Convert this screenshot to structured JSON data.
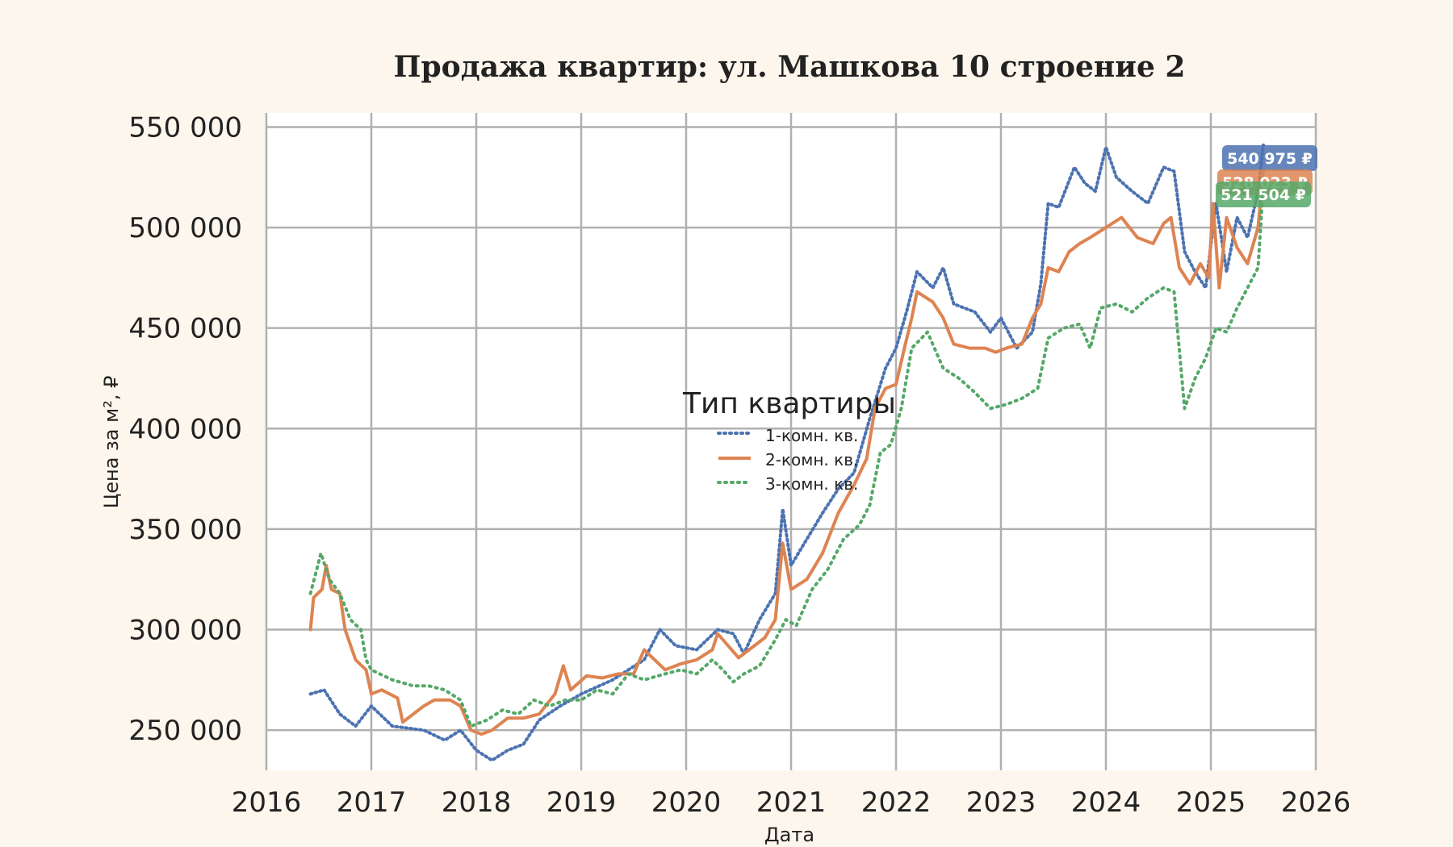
{
  "colors": {
    "background": "#fdf6ec",
    "plot_background": "#ffffff",
    "grid": "#b0b0b0",
    "series_1": "#4c72b0",
    "series_2": "#dd8452",
    "series_3": "#55a868"
  },
  "chart_data": {
    "type": "line",
    "title": "Продажа квартир: ул. Машкова 10 строение 2",
    "xlabel": "Дата",
    "ylabel": "Цена за м², ₽",
    "xlim": [
      2016,
      2026
    ],
    "ylim": [
      230000,
      557000
    ],
    "grid": true,
    "x_ticks": [
      "2016",
      "2017",
      "2018",
      "2019",
      "2020",
      "2021",
      "2022",
      "2023",
      "2024",
      "2025",
      "2026"
    ],
    "y_ticks": [
      "250 000",
      "300 000",
      "350 000",
      "400 000",
      "450 000",
      "500 000",
      "550 000"
    ],
    "y_tick_values": [
      250000,
      300000,
      350000,
      400000,
      450000,
      500000,
      550000
    ],
    "legend": {
      "title": "Тип квартиры",
      "placement": "center",
      "entries": [
        "1-комн. кв.",
        "2-комн. кв.",
        "3-комн. кв."
      ]
    },
    "series": [
      {
        "name": "1-комн. кв.",
        "style": "dotted-triangle",
        "last_value_label": "540 975 ₽",
        "points": [
          [
            2016.42,
            268000
          ],
          [
            2016.55,
            270000
          ],
          [
            2016.7,
            258000
          ],
          [
            2016.85,
            252000
          ],
          [
            2017.0,
            262000
          ],
          [
            2017.2,
            252000
          ],
          [
            2017.5,
            250000
          ],
          [
            2017.7,
            245000
          ],
          [
            2017.85,
            250000
          ],
          [
            2018.0,
            240000
          ],
          [
            2018.15,
            235000
          ],
          [
            2018.3,
            240000
          ],
          [
            2018.45,
            243000
          ],
          [
            2018.6,
            255000
          ],
          [
            2018.8,
            262000
          ],
          [
            2019.0,
            268000
          ],
          [
            2019.3,
            275000
          ],
          [
            2019.6,
            285000
          ],
          [
            2019.75,
            300000
          ],
          [
            2019.9,
            292000
          ],
          [
            2020.1,
            290000
          ],
          [
            2020.3,
            300000
          ],
          [
            2020.45,
            298000
          ],
          [
            2020.55,
            288000
          ],
          [
            2020.7,
            305000
          ],
          [
            2020.85,
            318000
          ],
          [
            2020.92,
            360000
          ],
          [
            2021.0,
            332000
          ],
          [
            2021.15,
            345000
          ],
          [
            2021.3,
            358000
          ],
          [
            2021.45,
            370000
          ],
          [
            2021.6,
            378000
          ],
          [
            2021.75,
            405000
          ],
          [
            2021.9,
            430000
          ],
          [
            2022.0,
            440000
          ],
          [
            2022.1,
            458000
          ],
          [
            2022.2,
            478000
          ],
          [
            2022.35,
            470000
          ],
          [
            2022.45,
            480000
          ],
          [
            2022.55,
            462000
          ],
          [
            2022.75,
            458000
          ],
          [
            2022.9,
            448000
          ],
          [
            2023.0,
            455000
          ],
          [
            2023.15,
            440000
          ],
          [
            2023.3,
            448000
          ],
          [
            2023.38,
            472000
          ],
          [
            2023.45,
            512000
          ],
          [
            2023.55,
            510000
          ],
          [
            2023.7,
            530000
          ],
          [
            2023.8,
            522000
          ],
          [
            2023.9,
            518000
          ],
          [
            2024.0,
            540000
          ],
          [
            2024.1,
            525000
          ],
          [
            2024.25,
            518000
          ],
          [
            2024.4,
            512000
          ],
          [
            2024.55,
            530000
          ],
          [
            2024.65,
            528000
          ],
          [
            2024.75,
            488000
          ],
          [
            2024.85,
            478000
          ],
          [
            2024.95,
            470000
          ],
          [
            2025.05,
            512000
          ],
          [
            2025.15,
            478000
          ],
          [
            2025.25,
            505000
          ],
          [
            2025.35,
            495000
          ],
          [
            2025.45,
            518000
          ],
          [
            2025.5,
            540975
          ]
        ]
      },
      {
        "name": "2-комн. кв.",
        "style": "solid",
        "last_value_label": "528 023 ₽",
        "points": [
          [
            2016.42,
            300000
          ],
          [
            2016.45,
            316000
          ],
          [
            2016.53,
            320000
          ],
          [
            2016.57,
            332000
          ],
          [
            2016.62,
            320000
          ],
          [
            2016.7,
            318000
          ],
          [
            2016.75,
            300000
          ],
          [
            2016.85,
            285000
          ],
          [
            2016.95,
            280000
          ],
          [
            2017.0,
            268000
          ],
          [
            2017.1,
            270000
          ],
          [
            2017.25,
            266000
          ],
          [
            2017.3,
            254000
          ],
          [
            2017.4,
            258000
          ],
          [
            2017.5,
            262000
          ],
          [
            2017.6,
            265000
          ],
          [
            2017.75,
            265000
          ],
          [
            2017.85,
            262000
          ],
          [
            2017.95,
            250000
          ],
          [
            2018.05,
            248000
          ],
          [
            2018.15,
            250000
          ],
          [
            2018.3,
            256000
          ],
          [
            2018.45,
            256000
          ],
          [
            2018.6,
            258000
          ],
          [
            2018.75,
            268000
          ],
          [
            2018.83,
            282000
          ],
          [
            2018.9,
            270000
          ],
          [
            2019.05,
            277000
          ],
          [
            2019.2,
            276000
          ],
          [
            2019.35,
            278000
          ],
          [
            2019.5,
            278000
          ],
          [
            2019.6,
            290000
          ],
          [
            2019.8,
            280000
          ],
          [
            2019.95,
            283000
          ],
          [
            2020.1,
            285000
          ],
          [
            2020.25,
            290000
          ],
          [
            2020.3,
            298000
          ],
          [
            2020.4,
            292000
          ],
          [
            2020.5,
            286000
          ],
          [
            2020.6,
            290000
          ],
          [
            2020.75,
            296000
          ],
          [
            2020.85,
            305000
          ],
          [
            2020.92,
            343000
          ],
          [
            2021.0,
            320000
          ],
          [
            2021.15,
            325000
          ],
          [
            2021.3,
            338000
          ],
          [
            2021.45,
            358000
          ],
          [
            2021.6,
            372000
          ],
          [
            2021.72,
            385000
          ],
          [
            2021.8,
            410000
          ],
          [
            2021.9,
            420000
          ],
          [
            2022.0,
            422000
          ],
          [
            2022.08,
            440000
          ],
          [
            2022.15,
            455000
          ],
          [
            2022.2,
            468000
          ],
          [
            2022.35,
            463000
          ],
          [
            2022.45,
            455000
          ],
          [
            2022.55,
            442000
          ],
          [
            2022.7,
            440000
          ],
          [
            2022.85,
            440000
          ],
          [
            2022.95,
            438000
          ],
          [
            2023.05,
            440000
          ],
          [
            2023.2,
            442000
          ],
          [
            2023.3,
            455000
          ],
          [
            2023.38,
            462000
          ],
          [
            2023.45,
            480000
          ],
          [
            2023.55,
            478000
          ],
          [
            2023.65,
            488000
          ],
          [
            2023.75,
            492000
          ],
          [
            2023.85,
            495000
          ],
          [
            2024.0,
            500000
          ],
          [
            2024.15,
            505000
          ],
          [
            2024.3,
            495000
          ],
          [
            2024.45,
            492000
          ],
          [
            2024.55,
            502000
          ],
          [
            2024.62,
            505000
          ],
          [
            2024.7,
            480000
          ],
          [
            2024.8,
            472000
          ],
          [
            2024.9,
            482000
          ],
          [
            2024.98,
            475000
          ],
          [
            2025.02,
            512000
          ],
          [
            2025.08,
            470000
          ],
          [
            2025.15,
            505000
          ],
          [
            2025.25,
            490000
          ],
          [
            2025.35,
            482000
          ],
          [
            2025.45,
            500000
          ],
          [
            2025.5,
            528023
          ]
        ]
      },
      {
        "name": "3-комн. кв.",
        "style": "dotted",
        "last_value_label": "521 504 ₽",
        "points": [
          [
            2016.42,
            318000
          ],
          [
            2016.52,
            338000
          ],
          [
            2016.6,
            325000
          ],
          [
            2016.7,
            318000
          ],
          [
            2016.8,
            305000
          ],
          [
            2016.9,
            300000
          ],
          [
            2016.95,
            285000
          ],
          [
            2017.0,
            280000
          ],
          [
            2017.2,
            275000
          ],
          [
            2017.4,
            272000
          ],
          [
            2017.55,
            272000
          ],
          [
            2017.7,
            270000
          ],
          [
            2017.85,
            265000
          ],
          [
            2017.95,
            252000
          ],
          [
            2018.1,
            255000
          ],
          [
            2018.25,
            260000
          ],
          [
            2018.4,
            258000
          ],
          [
            2018.55,
            265000
          ],
          [
            2018.7,
            262000
          ],
          [
            2018.85,
            265000
          ],
          [
            2019.0,
            265000
          ],
          [
            2019.15,
            270000
          ],
          [
            2019.3,
            268000
          ],
          [
            2019.45,
            278000
          ],
          [
            2019.6,
            275000
          ],
          [
            2019.8,
            278000
          ],
          [
            2019.95,
            280000
          ],
          [
            2020.1,
            278000
          ],
          [
            2020.25,
            285000
          ],
          [
            2020.35,
            280000
          ],
          [
            2020.45,
            274000
          ],
          [
            2020.55,
            278000
          ],
          [
            2020.7,
            282000
          ],
          [
            2020.85,
            295000
          ],
          [
            2020.95,
            305000
          ],
          [
            2021.05,
            302000
          ],
          [
            2021.2,
            320000
          ],
          [
            2021.35,
            330000
          ],
          [
            2021.5,
            345000
          ],
          [
            2021.65,
            352000
          ],
          [
            2021.75,
            362000
          ],
          [
            2021.85,
            388000
          ],
          [
            2021.95,
            392000
          ],
          [
            2022.05,
            410000
          ],
          [
            2022.15,
            440000
          ],
          [
            2022.3,
            448000
          ],
          [
            2022.45,
            430000
          ],
          [
            2022.6,
            425000
          ],
          [
            2022.75,
            418000
          ],
          [
            2022.9,
            410000
          ],
          [
            2023.05,
            412000
          ],
          [
            2023.2,
            415000
          ],
          [
            2023.35,
            420000
          ],
          [
            2023.45,
            445000
          ],
          [
            2023.6,
            450000
          ],
          [
            2023.75,
            452000
          ],
          [
            2023.85,
            440000
          ],
          [
            2023.95,
            460000
          ],
          [
            2024.1,
            462000
          ],
          [
            2024.25,
            458000
          ],
          [
            2024.4,
            465000
          ],
          [
            2024.55,
            470000
          ],
          [
            2024.65,
            468000
          ],
          [
            2024.75,
            410000
          ],
          [
            2024.85,
            425000
          ],
          [
            2024.95,
            435000
          ],
          [
            2025.05,
            450000
          ],
          [
            2025.15,
            448000
          ],
          [
            2025.25,
            460000
          ],
          [
            2025.35,
            470000
          ],
          [
            2025.45,
            480000
          ],
          [
            2025.5,
            521504
          ]
        ]
      }
    ]
  }
}
